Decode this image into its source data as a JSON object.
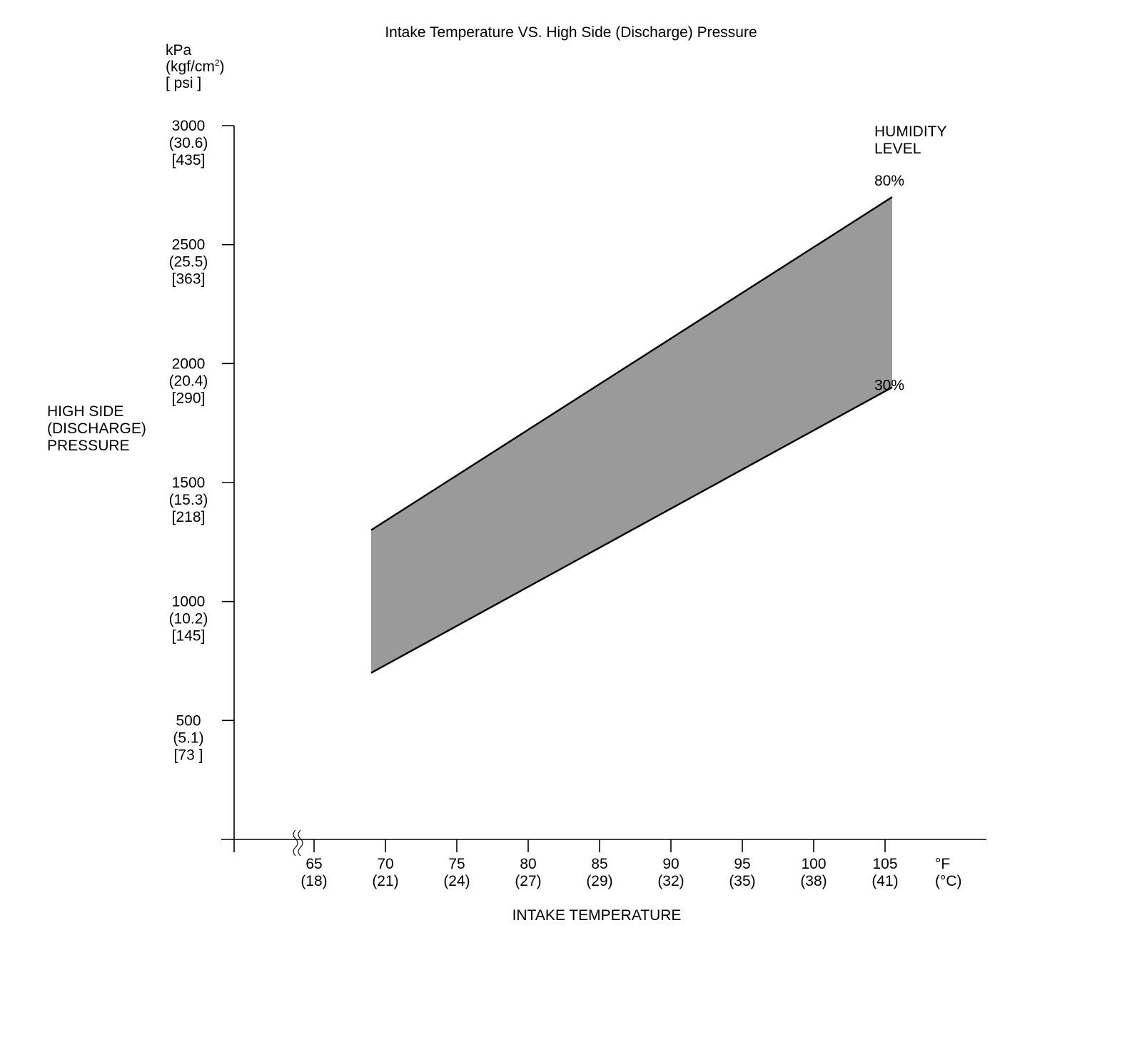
{
  "chart_data": {
    "type": "area",
    "title": "Intake Temperature VS. High Side (Discharge) Pressure",
    "ylabel_lines": [
      "HIGH SIDE",
      "(DISCHARGE)",
      "PRESSURE"
    ],
    "y_units_lines": [
      "kPa",
      "(kgf/cm",
      "2",
      ")",
      "[ psi ]"
    ],
    "xlabel": "INTAKE TEMPERATURE",
    "x_units_lines": [
      "°F",
      "(°C)"
    ],
    "legend_title_lines": [
      "HUMIDITY",
      "LEVEL"
    ],
    "ylim": [
      0,
      3000
    ],
    "xlim": [
      60,
      111.5
    ],
    "x_axis_break": true,
    "y_ticks": [
      {
        "value": 500,
        "lines": [
          "500",
          "(5.1)",
          "[73 ]"
        ]
      },
      {
        "value": 1000,
        "lines": [
          "1000",
          "(10.2)",
          "[145]"
        ]
      },
      {
        "value": 1500,
        "lines": [
          "1500",
          "(15.3)",
          "[218]"
        ]
      },
      {
        "value": 2000,
        "lines": [
          "2000",
          "(20.4)",
          "[290]"
        ]
      },
      {
        "value": 2500,
        "lines": [
          "2500",
          "(25.5)",
          "[363]"
        ]
      },
      {
        "value": 3000,
        "lines": [
          "3000",
          "(30.6)",
          "[435]"
        ]
      }
    ],
    "x_ticks": [
      {
        "value": 65,
        "lines": [
          "65",
          "(18)"
        ]
      },
      {
        "value": 70,
        "lines": [
          "70",
          "(21)"
        ]
      },
      {
        "value": 75,
        "lines": [
          "75",
          "(24)"
        ]
      },
      {
        "value": 80,
        "lines": [
          "80",
          "(27)"
        ]
      },
      {
        "value": 85,
        "lines": [
          "85",
          "(29)"
        ]
      },
      {
        "value": 90,
        "lines": [
          "90",
          "(32)"
        ]
      },
      {
        "value": 95,
        "lines": [
          "95",
          "(35)"
        ]
      },
      {
        "value": 100,
        "lines": [
          "100",
          "(38)"
        ]
      },
      {
        "value": 105,
        "lines": [
          "105",
          "(41)"
        ]
      }
    ],
    "series": [
      {
        "name": "80%",
        "x": [
          69,
          105.5
        ],
        "y": [
          1300,
          2700
        ]
      },
      {
        "name": "30%",
        "x": [
          69,
          105.5
        ],
        "y": [
          700,
          1900
        ]
      }
    ],
    "fill_color": "#9a9a9a",
    "line_color": "#000000"
  }
}
